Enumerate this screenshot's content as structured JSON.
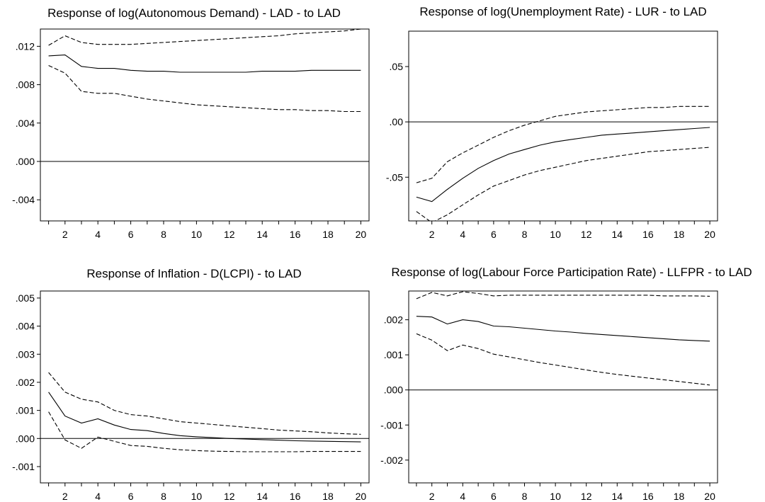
{
  "colors": {
    "line": "#000000",
    "background": "#ffffff"
  },
  "chart_data": [
    {
      "type": "line",
      "title": "Response of log(Autonomous Demand) - LAD - to LAD",
      "xlim": [
        0.5,
        20.5
      ],
      "ylim": [
        -0.0062,
        0.0138
      ],
      "x_ticks": [
        2,
        4,
        6,
        8,
        10,
        12,
        14,
        16,
        18,
        20
      ],
      "x_tick_labels": [
        "2",
        "4",
        "6",
        "8",
        "10",
        "12",
        "14",
        "16",
        "18",
        "20"
      ],
      "y_ticks": [
        0.012,
        0.008,
        0.004,
        0.0,
        -0.004
      ],
      "y_tick_labels": [
        ".012",
        ".008",
        ".004",
        ".000",
        "-.004"
      ],
      "zero_line": true,
      "x": [
        1,
        2,
        3,
        4,
        5,
        6,
        7,
        8,
        9,
        10,
        11,
        12,
        13,
        14,
        15,
        16,
        17,
        18,
        19,
        20
      ],
      "series": [
        {
          "style": "solid",
          "values": [
            0.011,
            0.0111,
            0.0099,
            0.0097,
            0.0097,
            0.0095,
            0.0094,
            0.0094,
            0.0093,
            0.0093,
            0.0093,
            0.0093,
            0.0093,
            0.0094,
            0.0094,
            0.0094,
            0.0095,
            0.0095,
            0.0095,
            0.0095
          ]
        },
        {
          "style": "dashed",
          "values": [
            0.0121,
            0.0131,
            0.0124,
            0.0122,
            0.0122,
            0.0122,
            0.0123,
            0.0124,
            0.0125,
            0.0126,
            0.0127,
            0.0128,
            0.0129,
            0.013,
            0.0131,
            0.0133,
            0.0134,
            0.0135,
            0.0136,
            0.0138
          ]
        },
        {
          "style": "dashed",
          "values": [
            0.01,
            0.0092,
            0.0073,
            0.0071,
            0.0071,
            0.0068,
            0.0065,
            0.0063,
            0.0061,
            0.0059,
            0.0058,
            0.0057,
            0.0056,
            0.0055,
            0.0054,
            0.0054,
            0.0053,
            0.0053,
            0.0052,
            0.0052
          ]
        }
      ]
    },
    {
      "type": "line",
      "title": "Response of log(Unemployment Rate) - LUR - to LAD",
      "xlim": [
        0.5,
        20.5
      ],
      "ylim": [
        -0.0895,
        0.082
      ],
      "x_ticks": [
        2,
        4,
        6,
        8,
        10,
        12,
        14,
        16,
        18,
        20
      ],
      "x_tick_labels": [
        "2",
        "4",
        "6",
        "8",
        "10",
        "12",
        "14",
        "16",
        "18",
        "20"
      ],
      "y_ticks": [
        0.05,
        0.0,
        -0.05
      ],
      "y_tick_labels": [
        ".05",
        ".00",
        "-.05"
      ],
      "zero_line": true,
      "x": [
        1,
        2,
        3,
        4,
        5,
        6,
        7,
        8,
        9,
        10,
        11,
        12,
        13,
        14,
        15,
        16,
        17,
        18,
        19,
        20
      ],
      "series": [
        {
          "style": "solid",
          "values": [
            -0.068,
            -0.072,
            -0.061,
            -0.051,
            -0.042,
            -0.035,
            -0.029,
            -0.025,
            -0.021,
            -0.018,
            -0.016,
            -0.014,
            -0.012,
            -0.011,
            -0.01,
            -0.009,
            -0.008,
            -0.007,
            -0.006,
            -0.005
          ]
        },
        {
          "style": "dashed",
          "values": [
            -0.055,
            -0.051,
            -0.036,
            -0.028,
            -0.021,
            -0.014,
            -0.008,
            -0.003,
            0.001,
            0.005,
            0.007,
            0.009,
            0.01,
            0.011,
            0.012,
            0.013,
            0.013,
            0.014,
            0.014,
            0.014
          ]
        },
        {
          "style": "dashed",
          "values": [
            -0.081,
            -0.091,
            -0.084,
            -0.075,
            -0.066,
            -0.058,
            -0.053,
            -0.048,
            -0.044,
            -0.041,
            -0.038,
            -0.035,
            -0.033,
            -0.031,
            -0.029,
            -0.027,
            -0.026,
            -0.025,
            -0.024,
            -0.023
          ]
        }
      ]
    },
    {
      "type": "line",
      "title": "Response of Inflation - D(LCPI) - to LAD",
      "xlim": [
        0.5,
        20.5
      ],
      "ylim": [
        -0.00158,
        0.00525
      ],
      "x_ticks": [
        2,
        4,
        6,
        8,
        10,
        12,
        14,
        16,
        18,
        20
      ],
      "x_tick_labels": [
        "2",
        "4",
        "6",
        "8",
        "10",
        "12",
        "14",
        "16",
        "18",
        "20"
      ],
      "y_ticks": [
        0.005,
        0.004,
        0.003,
        0.002,
        0.001,
        0.0,
        -0.001
      ],
      "y_tick_labels": [
        ".005",
        ".004",
        ".003",
        ".002",
        ".001",
        ".000",
        "-.001"
      ],
      "zero_line": true,
      "x": [
        1,
        2,
        3,
        4,
        5,
        6,
        7,
        8,
        9,
        10,
        11,
        12,
        13,
        14,
        15,
        16,
        17,
        18,
        19,
        20
      ],
      "series": [
        {
          "style": "solid",
          "values": [
            0.00165,
            0.0008,
            0.00055,
            0.0007,
            0.00048,
            0.00032,
            0.00028,
            0.00018,
            0.0001,
            6e-05,
            3e-05,
            0.0,
            -2e-05,
            -4e-05,
            -6e-05,
            -8e-05,
            -9e-05,
            -0.0001,
            -0.00011,
            -0.00012
          ]
        },
        {
          "style": "dashed",
          "values": [
            0.00235,
            0.00165,
            0.0014,
            0.0013,
            0.001,
            0.00085,
            0.0008,
            0.0007,
            0.0006,
            0.00055,
            0.0005,
            0.00045,
            0.0004,
            0.00035,
            0.0003,
            0.00027,
            0.00024,
            0.0002,
            0.00017,
            0.00015
          ]
        },
        {
          "style": "dashed",
          "values": [
            0.00095,
            -5e-05,
            -0.00035,
            5e-05,
            -0.0001,
            -0.00025,
            -0.00028,
            -0.00035,
            -0.0004,
            -0.00043,
            -0.00045,
            -0.00046,
            -0.00047,
            -0.00047,
            -0.00047,
            -0.00047,
            -0.00046,
            -0.00046,
            -0.00046,
            -0.00046
          ]
        }
      ]
    },
    {
      "type": "line",
      "title": "Response of log(Labour Force Participation Rate) - LLFPR - to LAD",
      "xlim": [
        0.5,
        20.5
      ],
      "ylim": [
        -0.00265,
        0.00282
      ],
      "x_ticks": [
        2,
        4,
        6,
        8,
        10,
        12,
        14,
        16,
        18,
        20
      ],
      "x_tick_labels": [
        "2",
        "4",
        "6",
        "8",
        "10",
        "12",
        "14",
        "16",
        "18",
        "20"
      ],
      "y_ticks": [
        0.002,
        0.001,
        0.0,
        -0.001,
        -0.002
      ],
      "y_tick_labels": [
        ".002",
        ".001",
        ".000",
        "-.001",
        "-.002"
      ],
      "zero_line": true,
      "x": [
        1,
        2,
        3,
        4,
        5,
        6,
        7,
        8,
        9,
        10,
        11,
        12,
        13,
        14,
        15,
        16,
        17,
        18,
        19,
        20
      ],
      "series": [
        {
          "style": "solid",
          "values": [
            0.0021,
            0.00208,
            0.00188,
            0.002,
            0.00195,
            0.00182,
            0.0018,
            0.00176,
            0.00172,
            0.00168,
            0.00165,
            0.00161,
            0.00158,
            0.00155,
            0.00152,
            0.00149,
            0.00146,
            0.00143,
            0.00141,
            0.00139
          ]
        },
        {
          "style": "dashed",
          "values": [
            0.0026,
            0.00278,
            0.00268,
            0.0028,
            0.00275,
            0.00268,
            0.0027,
            0.0027,
            0.0027,
            0.0027,
            0.0027,
            0.0027,
            0.0027,
            0.0027,
            0.0027,
            0.0027,
            0.00268,
            0.00268,
            0.00268,
            0.00267
          ]
        },
        {
          "style": "dashed",
          "values": [
            0.0016,
            0.00142,
            0.00112,
            0.00128,
            0.00118,
            0.00102,
            0.00094,
            0.00086,
            0.00078,
            0.00071,
            0.00064,
            0.00057,
            0.0005,
            0.00044,
            0.00039,
            0.00034,
            0.00029,
            0.00024,
            0.00019,
            0.00014
          ]
        }
      ]
    }
  ]
}
